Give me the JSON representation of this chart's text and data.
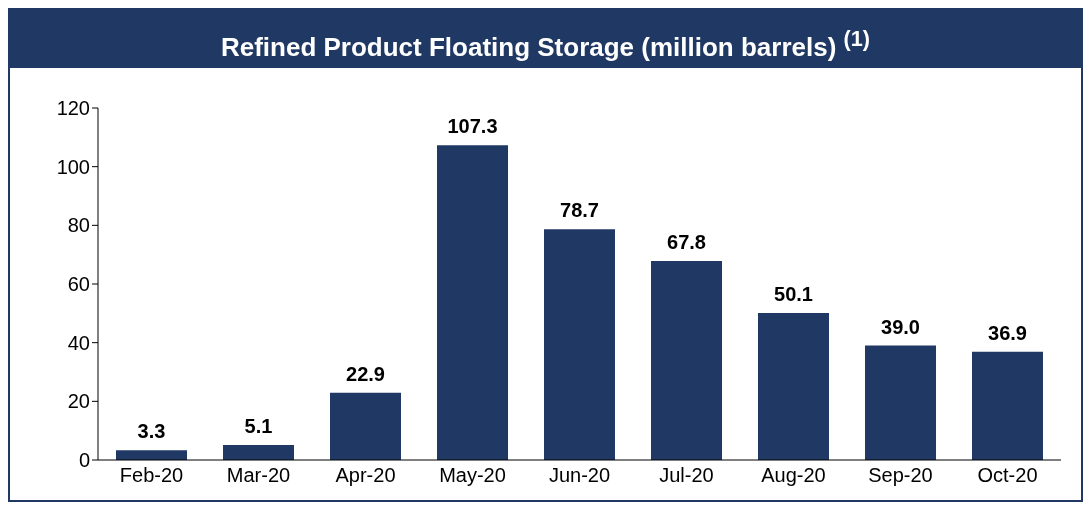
{
  "chart_data": {
    "type": "bar",
    "title": "Refined Product Floating Storage (million barrels) $^{(1)}$",
    "categories": [
      "Feb-20",
      "Mar-20",
      "Apr-20",
      "May-20",
      "Jun-20",
      "Jul-20",
      "Aug-20",
      "Sep-20",
      "Oct-20"
    ],
    "values": [
      3.3,
      5.1,
      22.9,
      107.3,
      78.7,
      67.8,
      50.1,
      39.0,
      36.9
    ],
    "color": "#203864",
    "ylim": [
      0,
      120
    ],
    "yticks": [
      0,
      20,
      40,
      60,
      80,
      100,
      120
    ],
    "value_labels": [
      "3.3",
      "5.1",
      "22.9",
      "107.3",
      "78.7",
      "67.8",
      "50.1",
      "39.0",
      "36.9"
    ]
  }
}
